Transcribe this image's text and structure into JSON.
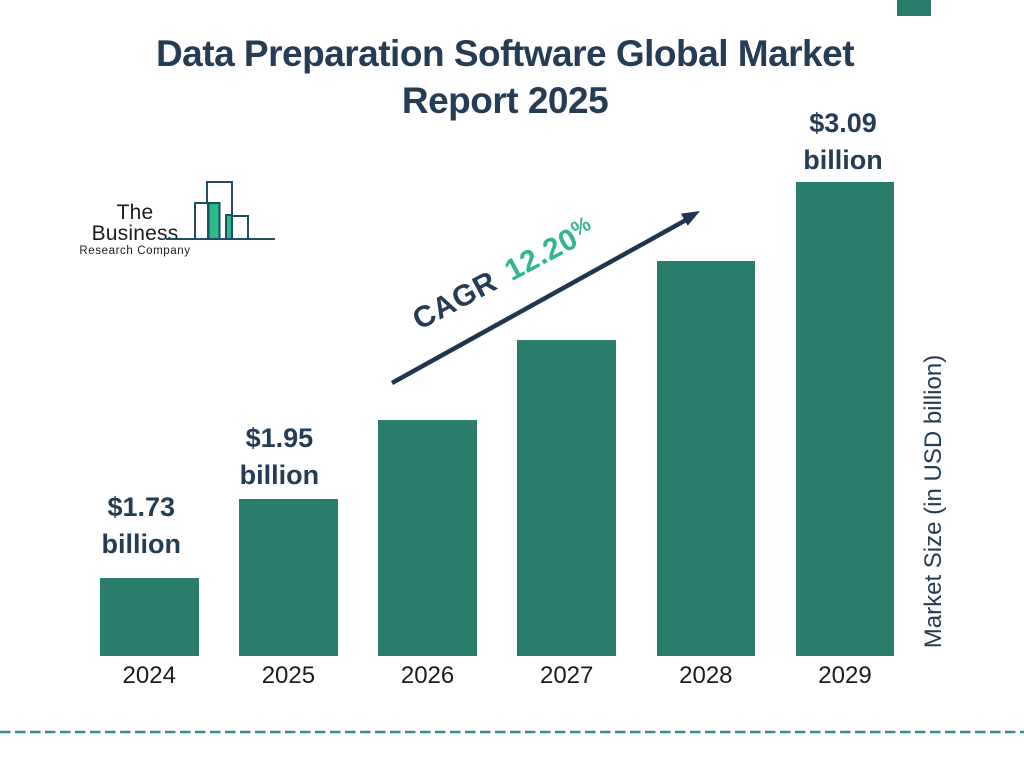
{
  "brand": {
    "line1": "The Business",
    "line2": "Research Company"
  },
  "chart_data": {
    "type": "bar",
    "title": "Data Preparation Software Global Market Report 2025",
    "title_lines": [
      "Data Preparation Software Global Market",
      "Report 2025"
    ],
    "categories": [
      "2024",
      "2025",
      "2026",
      "2027",
      "2028",
      "2029"
    ],
    "values": [
      1.73,
      1.95,
      2.19,
      2.46,
      2.75,
      3.09
    ],
    "annotations": [
      {
        "category": "2024",
        "line1": "$1.73",
        "line2": "billion"
      },
      {
        "category": "2025",
        "line1": "$1.95",
        "line2": "billion"
      },
      {
        "category": "2029",
        "line1": "$3.09",
        "line2": "billion"
      }
    ],
    "cagr_label": "CAGR",
    "cagr_value_number": "12.20",
    "cagr_value_suffix": "%",
    "xlabel": "",
    "ylabel": "Market Size (in USD billion)",
    "legend_position": "none",
    "grid": false,
    "colors": {
      "bar_teal": "#2A7D6C",
      "navy_text": "#253C55",
      "accent_green": "#30B688",
      "dashed_line_teal": "#2E948A",
      "logo_outline": "#1F4E63",
      "logo_green": "#2BBA8C",
      "year_label": "#1c1c1c",
      "background": "#ffffff"
    }
  }
}
